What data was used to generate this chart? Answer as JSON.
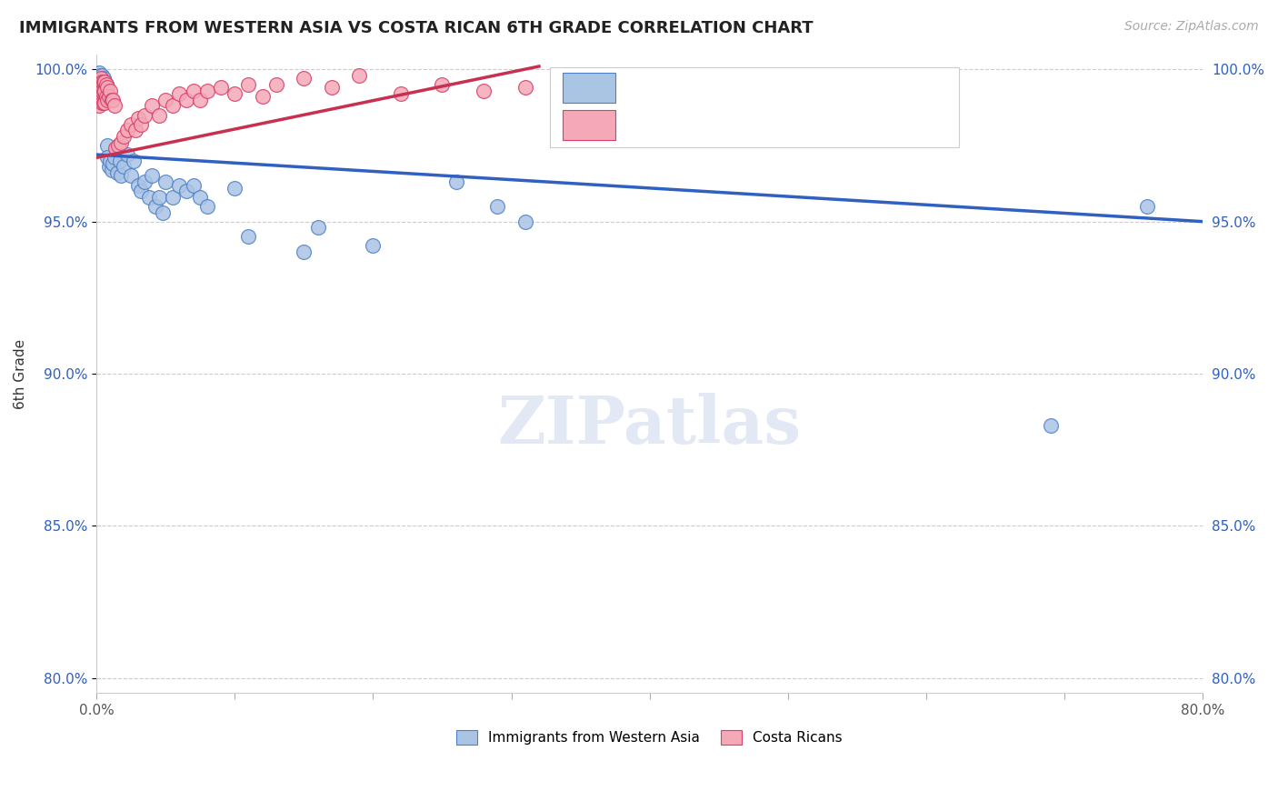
{
  "title": "IMMIGRANTS FROM WESTERN ASIA VS COSTA RICAN 6TH GRADE CORRELATION CHART",
  "source": "Source: ZipAtlas.com",
  "ylabel": "6th Grade",
  "xlim": [
    0.0,
    0.8
  ],
  "ylim": [
    0.795,
    1.005
  ],
  "yticks": [
    0.8,
    0.85,
    0.9,
    0.95,
    1.0
  ],
  "ytick_labels": [
    "80.0%",
    "85.0%",
    "90.0%",
    "95.0%",
    "100.0%"
  ],
  "xtick_positions": [
    0.0,
    0.1,
    0.2,
    0.3,
    0.4,
    0.5,
    0.6,
    0.7,
    0.8
  ],
  "xtick_labels": [
    "0.0%",
    "",
    "",
    "",
    "",
    "",
    "",
    "",
    "80.0%"
  ],
  "blue_color": "#aac4e4",
  "pink_color": "#f4a8b8",
  "blue_edge": "#5080c8",
  "pink_edge": "#d84068",
  "blue_line_color": "#3060c0",
  "pink_line_color": "#c83050",
  "blue_trend_x": [
    0.0,
    0.8
  ],
  "blue_trend_y": [
    0.972,
    0.95
  ],
  "pink_trend_x": [
    0.0,
    0.32
  ],
  "pink_trend_y": [
    0.971,
    1.001
  ],
  "blue_x": [
    0.001,
    0.001,
    0.002,
    0.002,
    0.002,
    0.003,
    0.003,
    0.003,
    0.003,
    0.004,
    0.004,
    0.004,
    0.005,
    0.005,
    0.005,
    0.006,
    0.006,
    0.006,
    0.007,
    0.007,
    0.008,
    0.008,
    0.009,
    0.01,
    0.011,
    0.012,
    0.013,
    0.015,
    0.017,
    0.018,
    0.02,
    0.022,
    0.025,
    0.027,
    0.03,
    0.032,
    0.035,
    0.038,
    0.04,
    0.043,
    0.045,
    0.048,
    0.05,
    0.055,
    0.06,
    0.065,
    0.07,
    0.075,
    0.08,
    0.1,
    0.11,
    0.15,
    0.16,
    0.2,
    0.26,
    0.29,
    0.31,
    0.69,
    0.76,
    0.005
  ],
  "blue_y": [
    0.998,
    0.996,
    0.999,
    0.997,
    0.995,
    0.998,
    0.996,
    0.994,
    0.992,
    0.998,
    0.995,
    0.993,
    0.997,
    0.995,
    0.993,
    0.996,
    0.994,
    0.992,
    0.995,
    0.993,
    0.975,
    0.971,
    0.968,
    0.97,
    0.967,
    0.969,
    0.971,
    0.966,
    0.97,
    0.965,
    0.968,
    0.972,
    0.965,
    0.97,
    0.962,
    0.96,
    0.963,
    0.958,
    0.965,
    0.955,
    0.958,
    0.953,
    0.963,
    0.958,
    0.962,
    0.96,
    0.962,
    0.958,
    0.955,
    0.961,
    0.945,
    0.94,
    0.948,
    0.942,
    0.963,
    0.955,
    0.95,
    0.883,
    0.955,
    0.99
  ],
  "pink_x": [
    0.001,
    0.001,
    0.002,
    0.002,
    0.002,
    0.003,
    0.003,
    0.003,
    0.004,
    0.004,
    0.004,
    0.005,
    0.005,
    0.005,
    0.006,
    0.006,
    0.006,
    0.007,
    0.007,
    0.008,
    0.008,
    0.009,
    0.01,
    0.011,
    0.012,
    0.013,
    0.014,
    0.016,
    0.018,
    0.02,
    0.022,
    0.025,
    0.028,
    0.03,
    0.032,
    0.035,
    0.04,
    0.045,
    0.05,
    0.055,
    0.06,
    0.065,
    0.07,
    0.075,
    0.08,
    0.09,
    0.1,
    0.11,
    0.12,
    0.13,
    0.15,
    0.17,
    0.19,
    0.22,
    0.25,
    0.28,
    0.31
  ],
  "pink_y": [
    0.993,
    0.99,
    0.995,
    0.992,
    0.988,
    0.997,
    0.994,
    0.99,
    0.996,
    0.993,
    0.989,
    0.996,
    0.993,
    0.989,
    0.996,
    0.993,
    0.989,
    0.995,
    0.991,
    0.994,
    0.99,
    0.991,
    0.993,
    0.99,
    0.99,
    0.988,
    0.974,
    0.975,
    0.976,
    0.978,
    0.98,
    0.982,
    0.98,
    0.984,
    0.982,
    0.985,
    0.988,
    0.985,
    0.99,
    0.988,
    0.992,
    0.99,
    0.993,
    0.99,
    0.993,
    0.994,
    0.992,
    0.995,
    0.991,
    0.995,
    0.997,
    0.994,
    0.998,
    0.992,
    0.995,
    0.993,
    0.994
  ]
}
